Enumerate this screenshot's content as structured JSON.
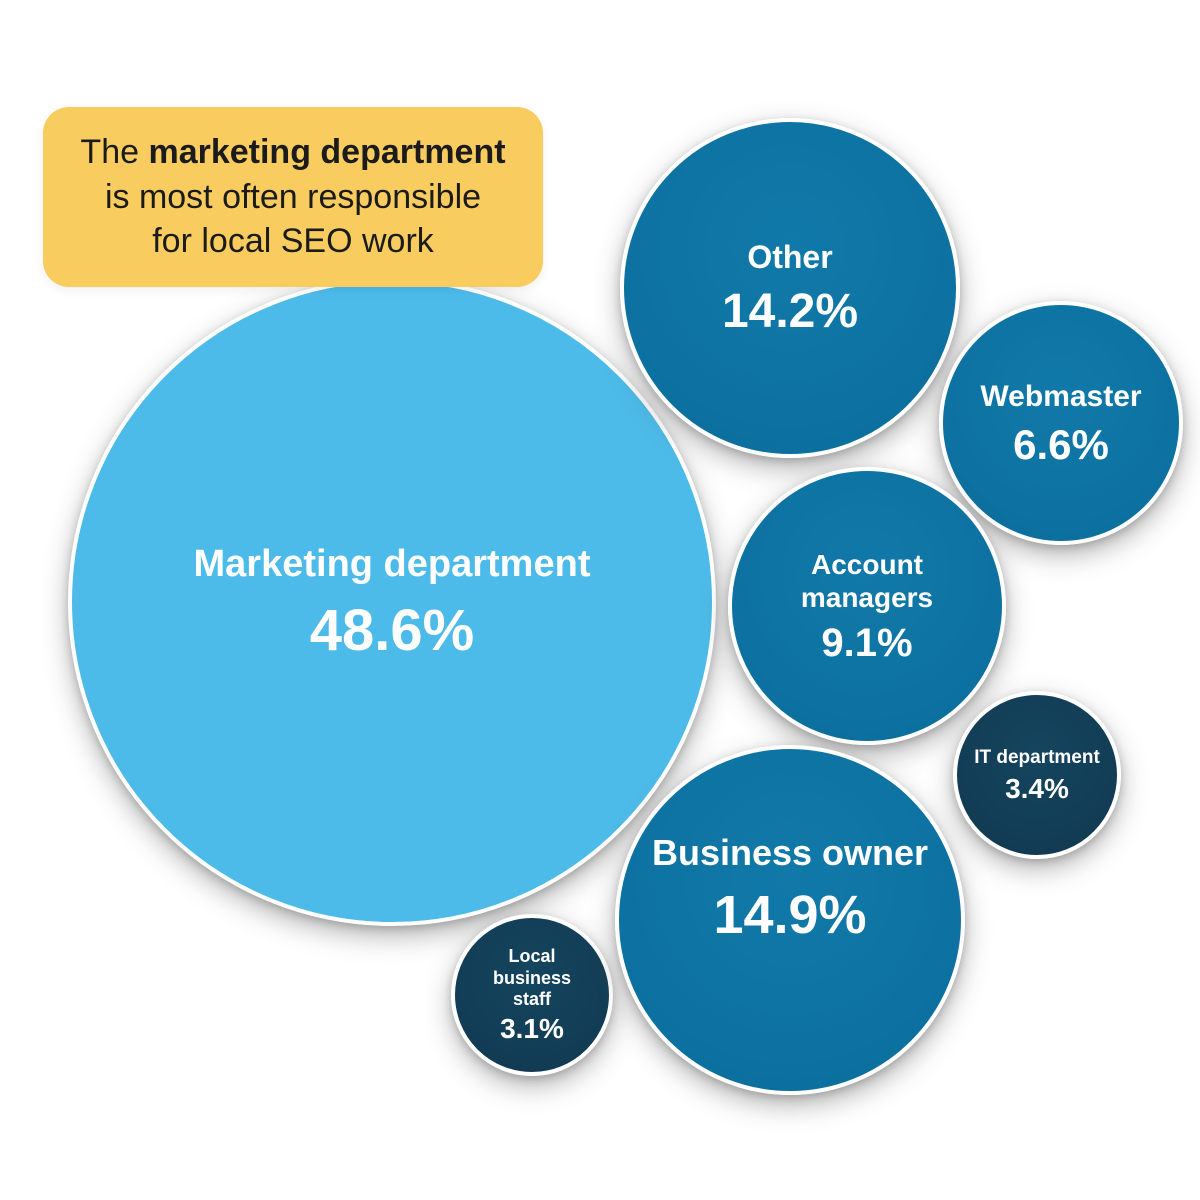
{
  "callout": {
    "line1_normal": "The ",
    "line1_bold": "marketing department",
    "line2": "is most often responsible",
    "line3": "for local SEO work"
  },
  "bubbles": [
    {
      "label": "Marketing department",
      "value": 48.6,
      "display": "48.6%"
    },
    {
      "label": "Other",
      "value": 14.2,
      "display": "14.2%"
    },
    {
      "label": "Webmaster",
      "value": 6.6,
      "display": "6.6%"
    },
    {
      "label": "Account managers",
      "value": 9.1,
      "display": "9.1%"
    },
    {
      "label": "IT department",
      "value": 3.4,
      "display": "3.4%"
    },
    {
      "label": "Local business staff",
      "value": 3.1,
      "display": "3.1%"
    },
    {
      "label": "Business owner",
      "value": 14.9,
      "display": "14.9%"
    }
  ],
  "chart_data": {
    "type": "bubble",
    "title": "The marketing department is most often responsible for local SEO work",
    "categories": [
      "Marketing department",
      "Other",
      "Business owner",
      "Account managers",
      "Webmaster",
      "IT department",
      "Local business staff"
    ],
    "values": [
      48.6,
      14.2,
      14.9,
      9.1,
      6.6,
      3.4,
      3.1
    ],
    "unit": "%",
    "legend_position": "none",
    "colors": {
      "marketing_bubble": "#4DBBE9",
      "medium_bubbles": "#0D72A2",
      "small_bubbles": "#123C54",
      "callout_background": "#F9CC5F",
      "bubble_text": "#FFFFFF",
      "callout_text": "#1B1B1B",
      "bubble_ring": "#FFFFFF"
    }
  }
}
